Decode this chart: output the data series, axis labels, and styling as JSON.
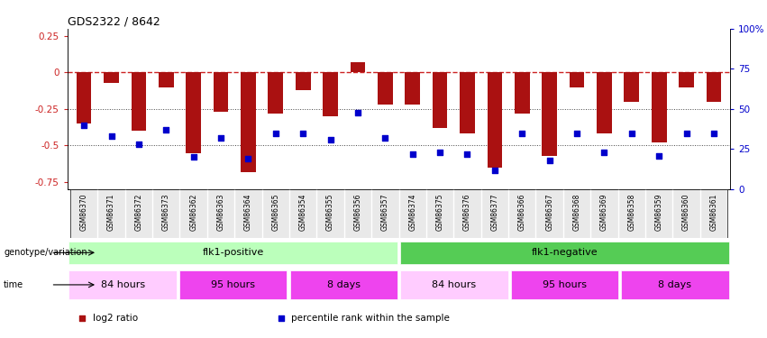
{
  "title": "GDS2322 / 8642",
  "samples": [
    "GSM86370",
    "GSM86371",
    "GSM86372",
    "GSM86373",
    "GSM86362",
    "GSM86363",
    "GSM86364",
    "GSM86365",
    "GSM86354",
    "GSM86355",
    "GSM86356",
    "GSM86357",
    "GSM86374",
    "GSM86375",
    "GSM86376",
    "GSM86377",
    "GSM86366",
    "GSM86367",
    "GSM86368",
    "GSM86369",
    "GSM86358",
    "GSM86359",
    "GSM86360",
    "GSM86361"
  ],
  "log2_ratio": [
    -0.35,
    -0.07,
    -0.4,
    -0.1,
    -0.55,
    -0.27,
    -0.68,
    -0.28,
    -0.12,
    -0.3,
    0.07,
    -0.22,
    -0.22,
    -0.38,
    -0.42,
    -0.65,
    -0.28,
    -0.57,
    -0.1,
    -0.42,
    -0.2,
    -0.48,
    -0.1,
    -0.2
  ],
  "percentile_rank": [
    40,
    33,
    28,
    37,
    20,
    32,
    19,
    35,
    35,
    31,
    48,
    32,
    22,
    23,
    22,
    12,
    35,
    18,
    35,
    23,
    35,
    21,
    35,
    35
  ],
  "bar_color": "#aa1111",
  "dot_color": "#0000cc",
  "ref_line_color": "#cc2222",
  "dotted_line_color": "#444444",
  "ylim_left": [
    -0.8,
    0.3
  ],
  "ylim_right": [
    0,
    100
  ],
  "yticks_left": [
    -0.75,
    -0.5,
    -0.25,
    0,
    0.25
  ],
  "yticks_right": [
    0,
    25,
    50,
    75,
    100
  ],
  "ylabel_left_color": "#cc2222",
  "ylabel_right_color": "#0000cc",
  "genotype_label": "genotype/variation",
  "time_label": "time",
  "geno_segs": [
    {
      "label": "flk1-positive",
      "start": 0,
      "end": 12,
      "color": "#bbffbb"
    },
    {
      "label": "flk1-negative",
      "start": 12,
      "end": 24,
      "color": "#55cc55"
    }
  ],
  "time_segs": [
    {
      "label": "84 hours",
      "start": 0,
      "end": 4,
      "color": "#ffccff"
    },
    {
      "label": "95 hours",
      "start": 4,
      "end": 8,
      "color": "#ee44ee"
    },
    {
      "label": "8 days",
      "start": 8,
      "end": 12,
      "color": "#ee44ee"
    },
    {
      "label": "84 hours",
      "start": 12,
      "end": 16,
      "color": "#ffccff"
    },
    {
      "label": "95 hours",
      "start": 16,
      "end": 20,
      "color": "#ee44ee"
    },
    {
      "label": "8 days",
      "start": 20,
      "end": 24,
      "color": "#ee44ee"
    }
  ],
  "legend_items": [
    {
      "label": "log2 ratio",
      "color": "#aa1111"
    },
    {
      "label": "percentile rank within the sample",
      "color": "#0000cc"
    }
  ]
}
